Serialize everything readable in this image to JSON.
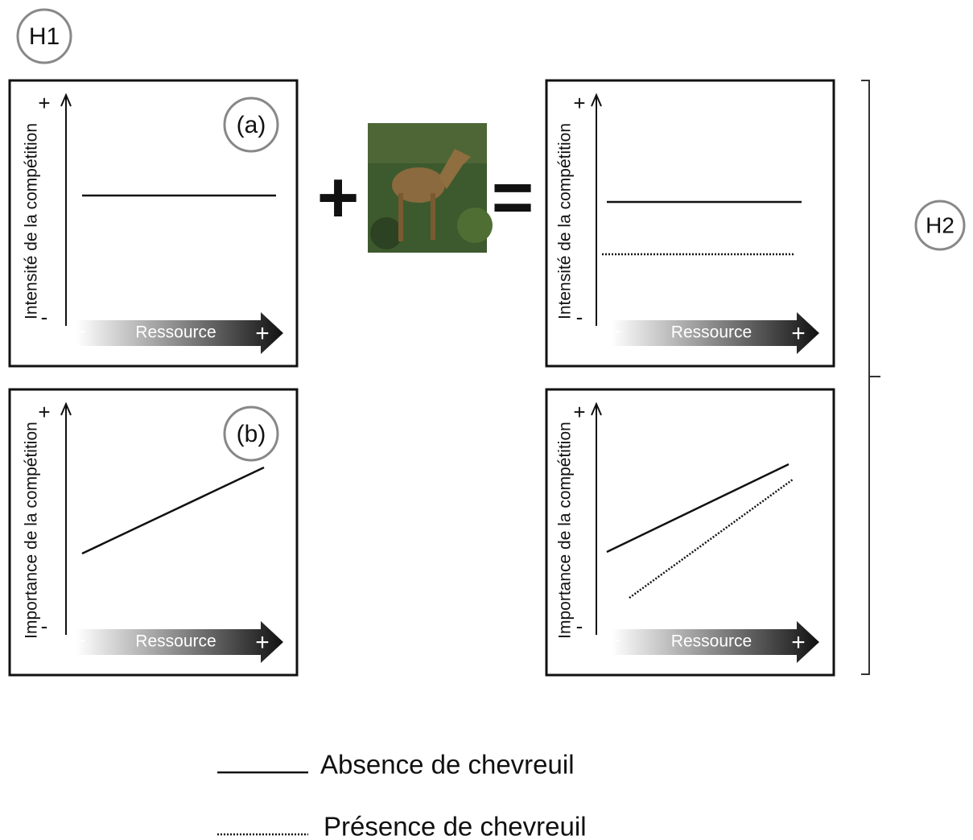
{
  "labels": {
    "h1": "H1",
    "h2": "H2"
  },
  "operators": {
    "plus": "+",
    "equals": "="
  },
  "panels": [
    {
      "tag": "(a)",
      "y_label": "Intensité de la compétition",
      "y_max": "+",
      "y_min": "-",
      "x_label": "Ressource",
      "x_min": "-",
      "x_max": "+"
    },
    {
      "tag": "(b)",
      "y_label": "Importance de la compétition",
      "y_max": "+",
      "y_min": "-",
      "x_label": "Ressource",
      "x_min": "-",
      "x_max": "+"
    },
    {
      "y_label": "Intensité de la compétition",
      "y_max": "+",
      "y_min": "-",
      "x_label": "Ressource",
      "x_min": "-",
      "x_max": "+"
    },
    {
      "y_label": "Importance de la compétition",
      "y_max": "+",
      "y_min": "-",
      "x_label": "Ressource",
      "x_min": "-",
      "x_max": "+"
    }
  ],
  "legend": [
    {
      "label": "Absence de chevreuil"
    },
    {
      "label": "Présence de chevreuil"
    }
  ]
}
